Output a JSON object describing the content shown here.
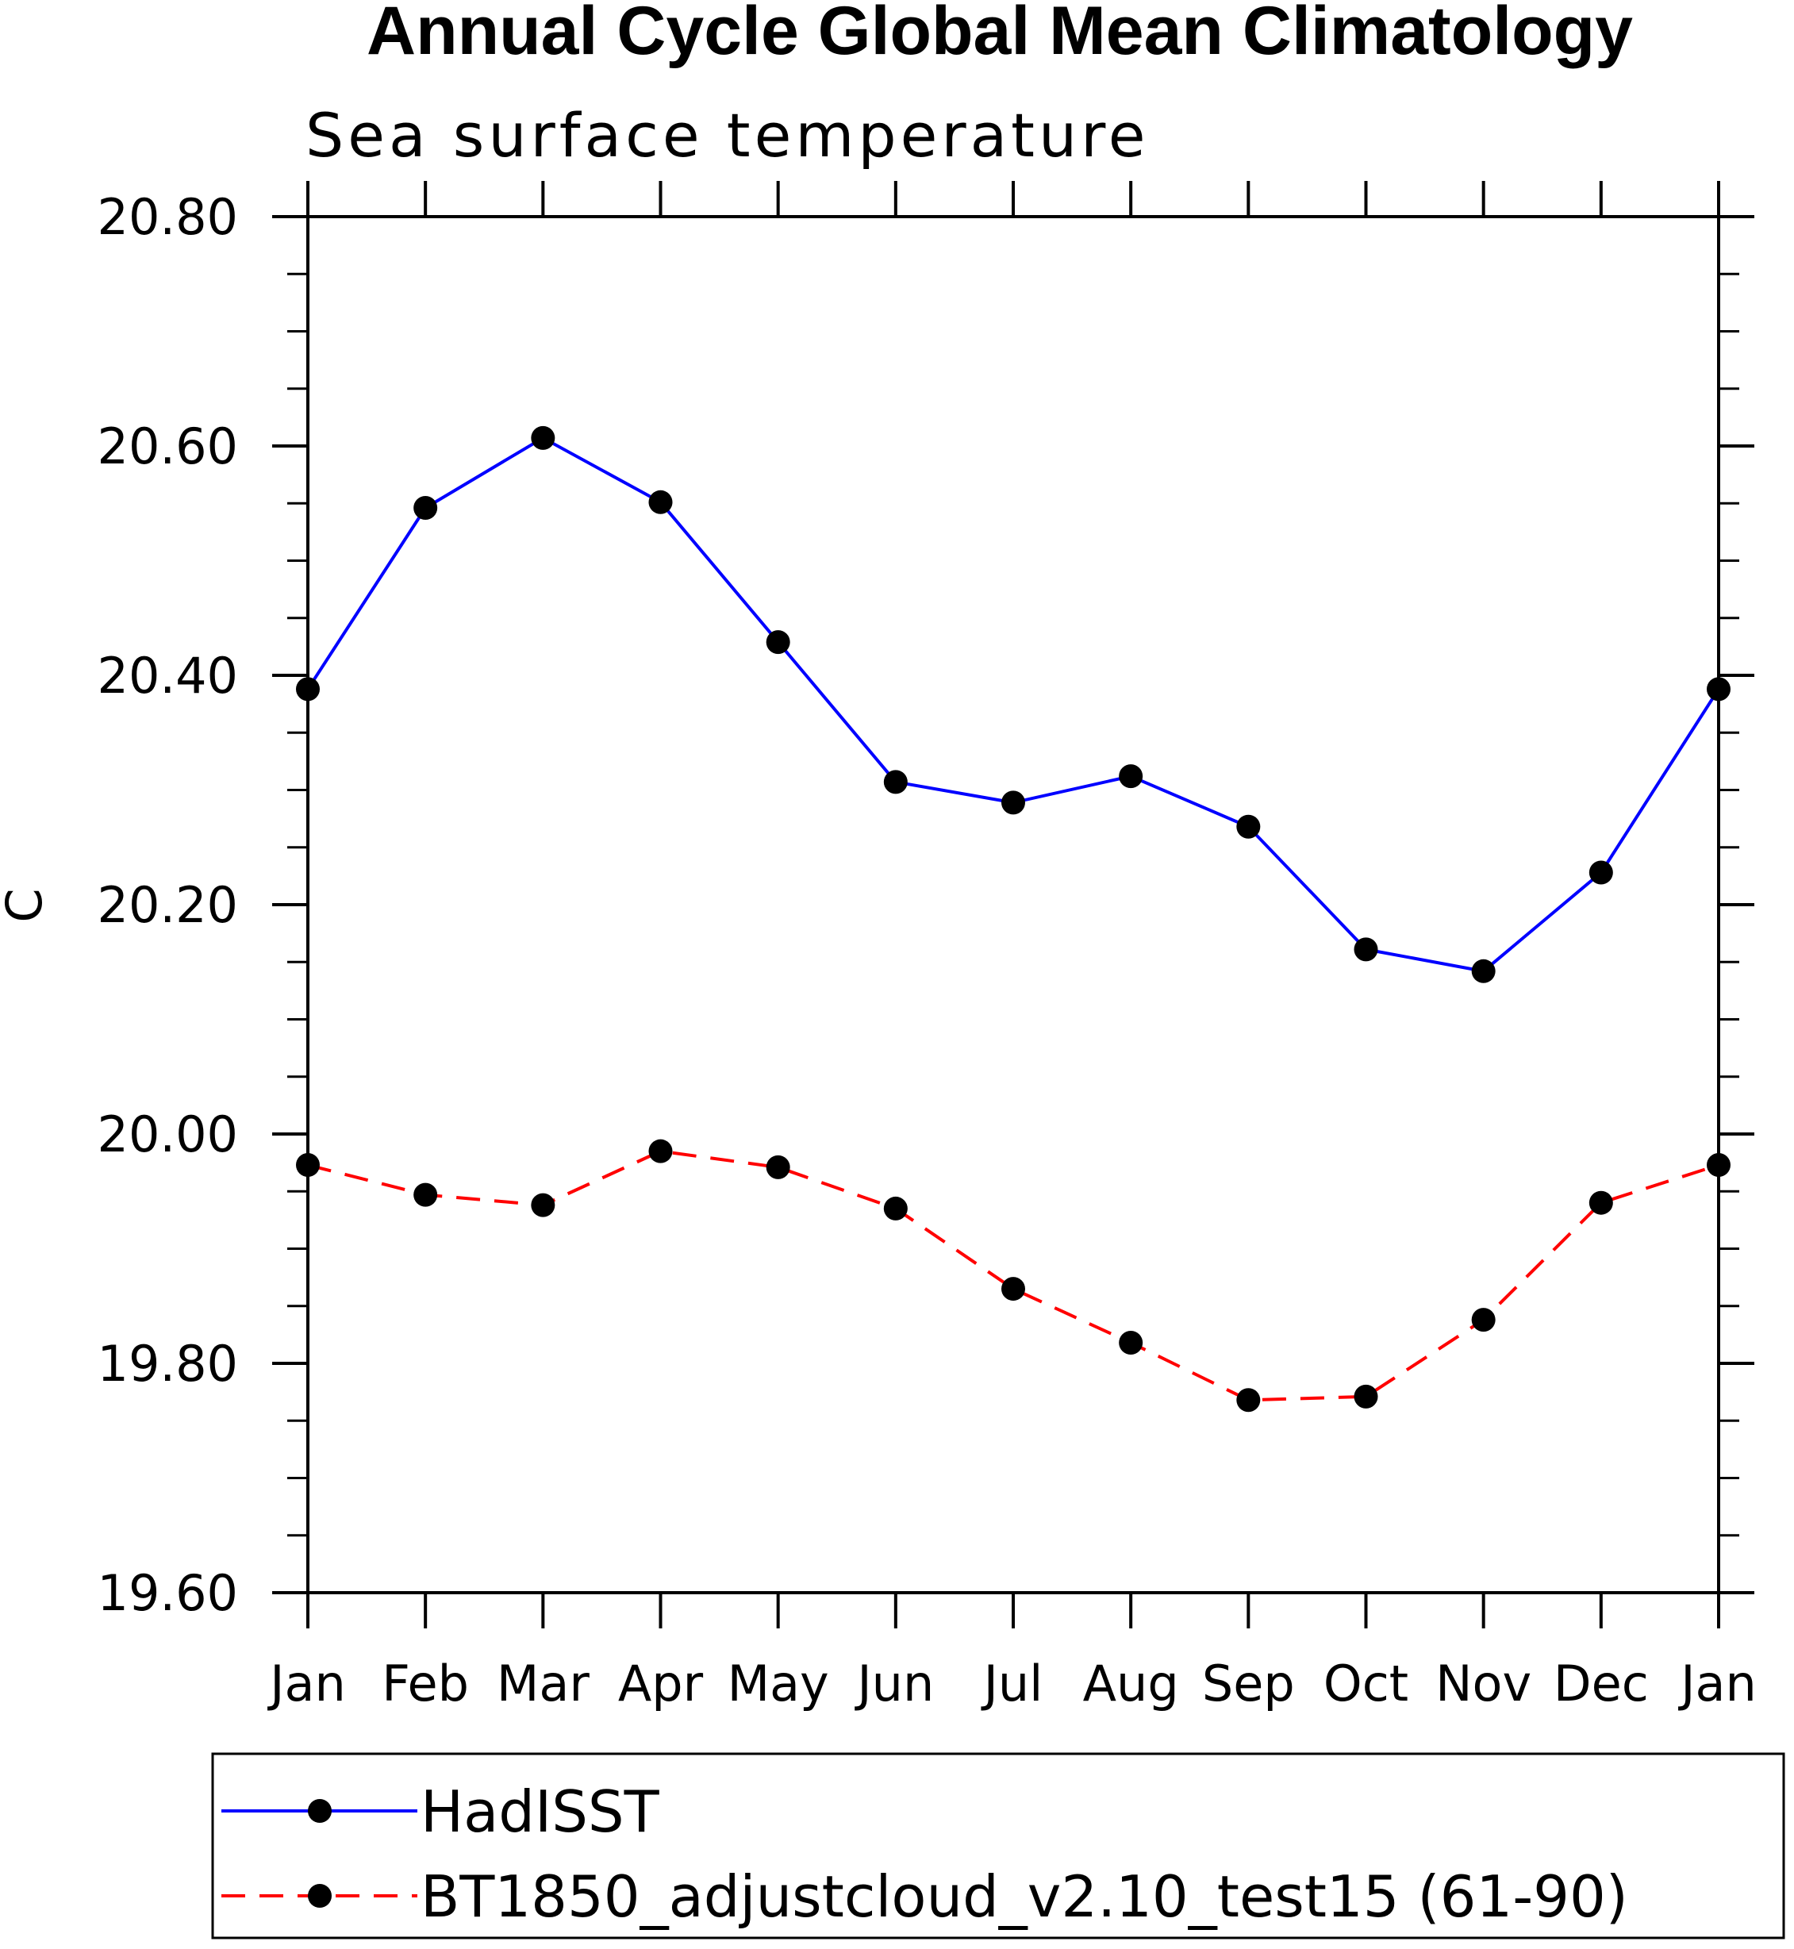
{
  "chart_data": {
    "type": "line",
    "title": "Annual Cycle Global Mean Climatology",
    "subtitle": "Sea surface temperature",
    "xlabel": "",
    "ylabel": "C",
    "categories": [
      "Jan",
      "Feb",
      "Mar",
      "Apr",
      "May",
      "Jun",
      "Jul",
      "Aug",
      "Sep",
      "Oct",
      "Nov",
      "Dec",
      "Jan"
    ],
    "ylim": [
      19.6,
      20.8
    ],
    "yticks": [
      "19.60",
      "19.80",
      "20.00",
      "20.20",
      "20.40",
      "20.60",
      "20.80"
    ],
    "grid": false,
    "legend_position": "bottom",
    "series": [
      {
        "name": "HadISST",
        "color": "#0000ff",
        "dash": "solid",
        "marker": "filled-circle",
        "values": [
          20.388,
          20.546,
          20.607,
          20.551,
          20.429,
          20.307,
          20.289,
          20.312,
          20.268,
          20.161,
          20.142,
          20.228,
          20.388
        ]
      },
      {
        "name": "BT1850_adjustcloud_v2.10_test15 (61-90)",
        "color": "#ff0000",
        "dash": "dashed",
        "marker": "filled-circle",
        "values": [
          19.973,
          19.947,
          19.938,
          19.985,
          19.971,
          19.935,
          19.865,
          19.818,
          19.768,
          19.771,
          19.838,
          19.94,
          19.973
        ]
      }
    ]
  }
}
